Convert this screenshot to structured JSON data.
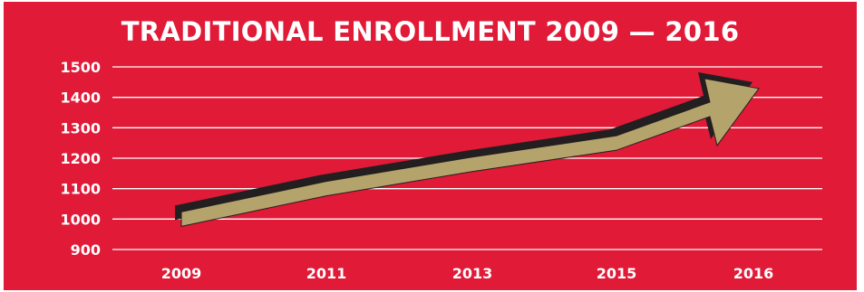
{
  "chart_data": {
    "type": "line",
    "title": "TRADITIONAL ENROLLMENT 2009 — 2016",
    "xlabel": "",
    "ylabel": "",
    "categories": [
      "2009",
      "2011",
      "2013",
      "2015",
      "2016"
    ],
    "y_ticks": [
      1500,
      1400,
      1300,
      1200,
      1100,
      1000,
      900
    ],
    "ylim": [
      900,
      1500
    ],
    "grid": true,
    "series": [
      {
        "values": [
          1000,
          1100,
          1180,
          1250,
          1420
        ]
      }
    ],
    "colors": {
      "background": "#e01a37",
      "grid": "#ffffff",
      "text": "#ffffff",
      "arrow_fill": "#b4a46c",
      "arrow_shadow": "#231f20"
    }
  }
}
